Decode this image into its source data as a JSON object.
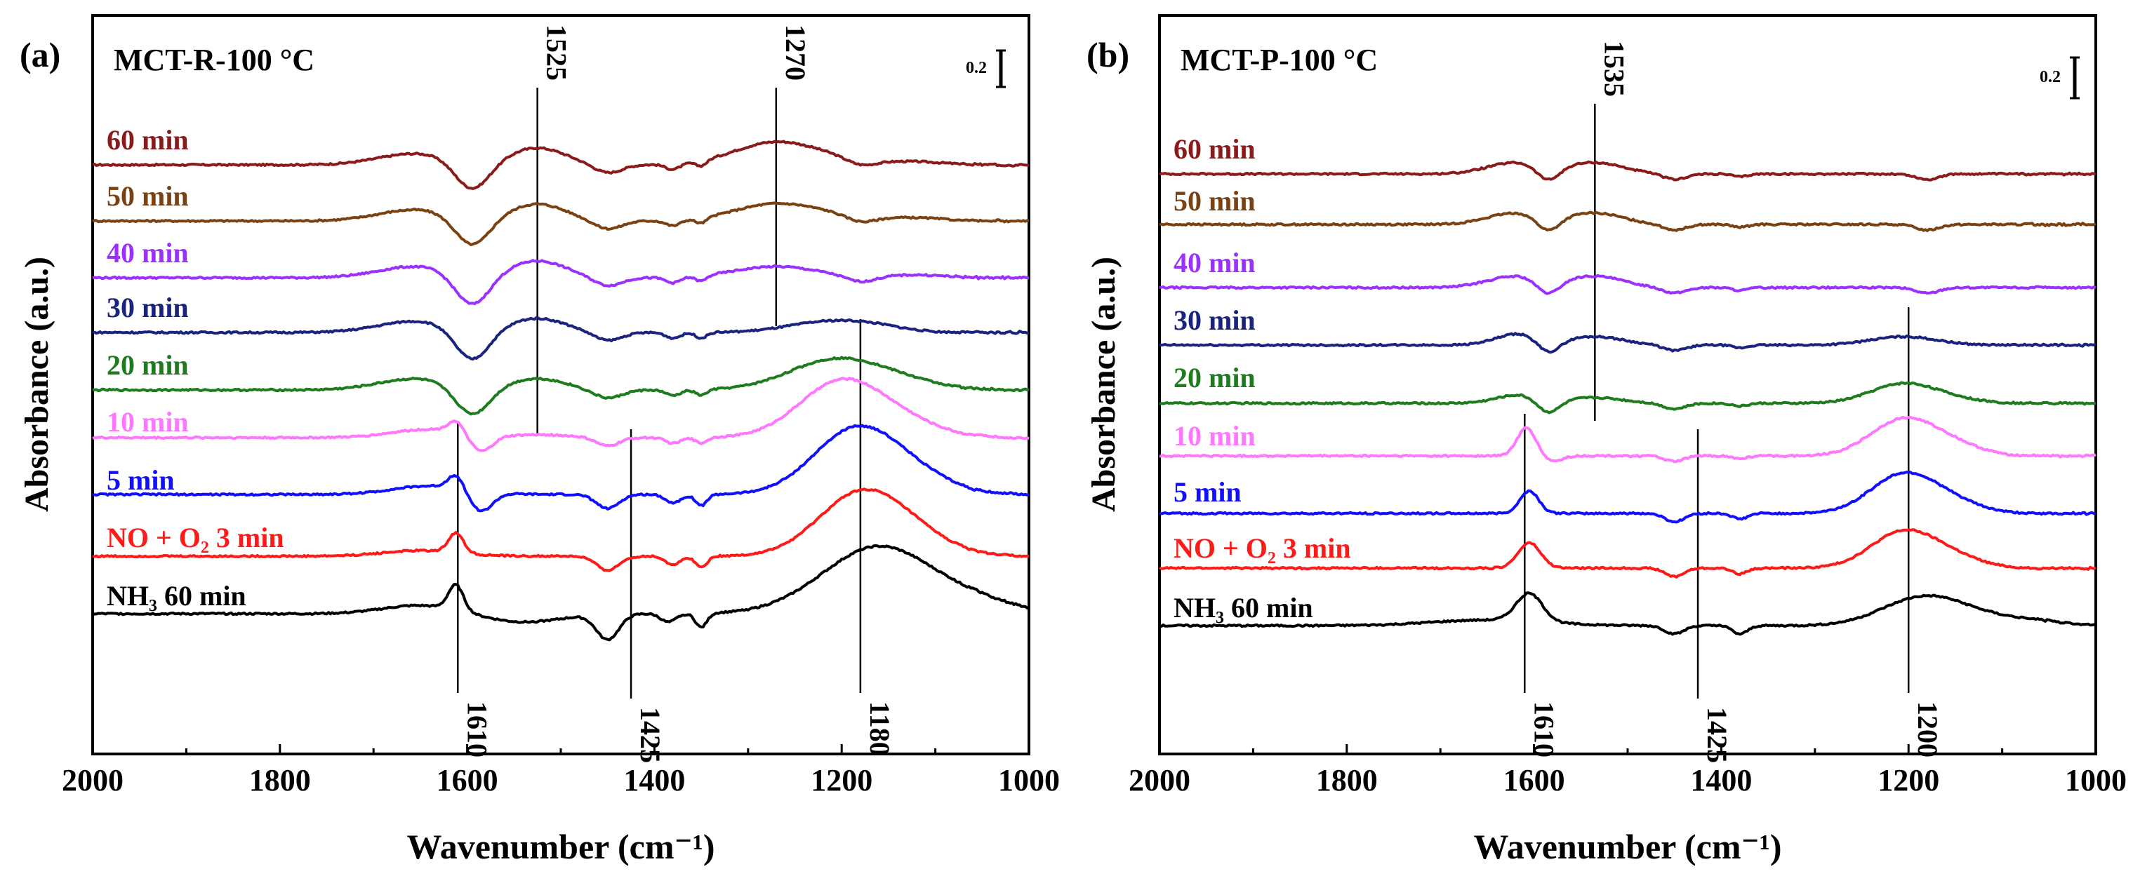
{
  "chart_data": [
    {
      "panel": "(a)",
      "type": "line",
      "title": "MCT-R-100 °C",
      "xlabel": "Wavenumber (cm⁻¹)",
      "ylabel": "Absorbance (a.u.)",
      "xlim": [
        2000,
        1000
      ],
      "x_ticks": [
        "2000",
        "1800",
        "1600",
        "1400",
        "1200",
        "1000"
      ],
      "scale_bar_label": "0.2",
      "series": [
        {
          "name": "60 min",
          "color": "#8b1a1a",
          "baseline": 0.0,
          "features": [
            [
              1655,
              0.04,
              40
            ],
            [
              1595,
              -0.1,
              18
            ],
            [
              1525,
              0.06,
              30
            ],
            [
              1450,
              -0.03,
              15
            ],
            [
              1380,
              -0.02,
              8
            ],
            [
              1350,
              -0.02,
              6
            ],
            [
              1270,
              0.08,
              45
            ],
            [
              1200,
              0.01,
              40
            ],
            [
              1180,
              -0.02,
              15
            ],
            [
              1120,
              0.01,
              30
            ]
          ]
        },
        {
          "name": "50 min",
          "color": "#7a4212",
          "baseline": 0.0,
          "features": [
            [
              1655,
              0.04,
              40
            ],
            [
              1595,
              -0.1,
              18
            ],
            [
              1525,
              0.06,
              30
            ],
            [
              1450,
              -0.03,
              15
            ],
            [
              1380,
              -0.02,
              8
            ],
            [
              1350,
              -0.02,
              6
            ],
            [
              1270,
              0.06,
              45
            ],
            [
              1200,
              0.01,
              40
            ],
            [
              1180,
              -0.02,
              15
            ],
            [
              1120,
              0.01,
              30
            ]
          ]
        },
        {
          "name": "40 min",
          "color": "#9b30ff",
          "baseline": 0.0,
          "features": [
            [
              1655,
              0.04,
              40
            ],
            [
              1595,
              -0.11,
              18
            ],
            [
              1525,
              0.06,
              30
            ],
            [
              1450,
              -0.03,
              15
            ],
            [
              1380,
              -0.02,
              8
            ],
            [
              1350,
              -0.02,
              6
            ],
            [
              1270,
              0.04,
              45
            ],
            [
              1180,
              -0.02,
              15
            ],
            [
              1120,
              0.01,
              30
            ]
          ]
        },
        {
          "name": "30 min",
          "color": "#1a237e",
          "baseline": 0.0,
          "features": [
            [
              1655,
              0.04,
              40
            ],
            [
              1595,
              -0.11,
              18
            ],
            [
              1525,
              0.05,
              30
            ],
            [
              1450,
              -0.03,
              15
            ],
            [
              1380,
              -0.02,
              8
            ],
            [
              1350,
              -0.02,
              6
            ],
            [
              1210,
              0.04,
              45
            ],
            [
              1160,
              0.01,
              30
            ]
          ]
        },
        {
          "name": "20 min",
          "color": "#1e7b1e",
          "baseline": 0.0,
          "features": [
            [
              1655,
              0.04,
              40
            ],
            [
              1595,
              -0.1,
              18
            ],
            [
              1525,
              0.04,
              30
            ],
            [
              1450,
              -0.03,
              15
            ],
            [
              1380,
              -0.02,
              8
            ],
            [
              1350,
              -0.02,
              6
            ],
            [
              1205,
              0.11,
              50
            ],
            [
              1130,
              0.02,
              40
            ]
          ]
        },
        {
          "name": "10 min",
          "color": "#ff77ff",
          "baseline": 0.0,
          "features": [
            [
              1640,
              0.03,
              40
            ],
            [
              1612,
              0.04,
              8
            ],
            [
              1585,
              -0.06,
              12
            ],
            [
              1520,
              0.01,
              30
            ],
            [
              1450,
              -0.03,
              12
            ],
            [
              1380,
              -0.02,
              8
            ],
            [
              1350,
              -0.02,
              6
            ],
            [
              1200,
              0.2,
              45
            ],
            [
              1130,
              0.04,
              40
            ]
          ]
        },
        {
          "name": "5 min",
          "color": "#1010ff",
          "baseline": 0.0,
          "features": [
            [
              1640,
              0.03,
              40
            ],
            [
              1612,
              0.05,
              8
            ],
            [
              1585,
              -0.07,
              12
            ],
            [
              1450,
              -0.05,
              12
            ],
            [
              1380,
              -0.03,
              8
            ],
            [
              1350,
              -0.04,
              6
            ],
            [
              1185,
              0.23,
              45
            ],
            [
              1120,
              0.05,
              40
            ]
          ]
        },
        {
          "name": "NO + O₂ 3 min",
          "color": "#ff1a1a",
          "baseline": 0.0,
          "features": [
            [
              1650,
              0.02,
              40
            ],
            [
              1612,
              0.07,
              8
            ],
            [
              1450,
              -0.05,
              12
            ],
            [
              1380,
              -0.03,
              8
            ],
            [
              1350,
              -0.04,
              6
            ],
            [
              1180,
              0.22,
              45
            ],
            [
              1120,
              0.05,
              40
            ]
          ]
        },
        {
          "name": "NH₃ 60 min",
          "color": "#000000",
          "baseline": 0.0,
          "features": [
            [
              1650,
              0.03,
              40
            ],
            [
              1612,
              0.09,
              8
            ],
            [
              1540,
              -0.03,
              40
            ],
            [
              1450,
              -0.09,
              12
            ],
            [
              1385,
              -0.03,
              8
            ],
            [
              1350,
              -0.05,
              6
            ],
            [
              1160,
              0.24,
              60
            ],
            [
              1050,
              0.03,
              40
            ]
          ]
        }
      ],
      "markers": [
        {
          "x": 1525,
          "label": "1525"
        },
        {
          "x": 1270,
          "label": "1270"
        },
        {
          "x": 1610,
          "label": "1610"
        },
        {
          "x": 1425,
          "label": "1425"
        },
        {
          "x": 1180,
          "label": "1180"
        }
      ]
    },
    {
      "panel": "(b)",
      "type": "line",
      "title": "MCT-P-100 °C",
      "xlabel": "Wavenumber (cm⁻¹)",
      "ylabel": "Absorbance (a.u.)",
      "xlim": [
        2000,
        1000
      ],
      "x_ticks": [
        "2000",
        "1800",
        "1600",
        "1400",
        "1200",
        "1000"
      ],
      "scale_bar_label": "0.2",
      "series": [
        {
          "name": "60 min",
          "color": "#8b1a1a",
          "baseline": 0.0,
          "features": [
            [
              1620,
              0.04,
              30
            ],
            [
              1585,
              -0.05,
              12
            ],
            [
              1535,
              0.04,
              30
            ],
            [
              1450,
              -0.02,
              12
            ],
            [
              1380,
              -0.01,
              8
            ],
            [
              1180,
              -0.02,
              12
            ]
          ]
        },
        {
          "name": "50 min",
          "color": "#7a4212",
          "baseline": 0.0,
          "features": [
            [
              1620,
              0.04,
              30
            ],
            [
              1585,
              -0.05,
              12
            ],
            [
              1535,
              0.04,
              30
            ],
            [
              1450,
              -0.02,
              12
            ],
            [
              1380,
              -0.01,
              8
            ],
            [
              1180,
              -0.02,
              12
            ]
          ]
        },
        {
          "name": "40 min",
          "color": "#9b30ff",
          "baseline": 0.0,
          "features": [
            [
              1620,
              0.04,
              30
            ],
            [
              1585,
              -0.05,
              12
            ],
            [
              1535,
              0.04,
              30
            ],
            [
              1450,
              -0.02,
              12
            ],
            [
              1380,
              -0.01,
              8
            ],
            [
              1180,
              -0.02,
              12
            ]
          ]
        },
        {
          "name": "30 min",
          "color": "#1a237e",
          "baseline": 0.0,
          "features": [
            [
              1615,
              0.04,
              25
            ],
            [
              1585,
              -0.05,
              12
            ],
            [
              1535,
              0.03,
              30
            ],
            [
              1450,
              -0.02,
              12
            ],
            [
              1380,
              -0.01,
              8
            ],
            [
              1205,
              0.03,
              35
            ]
          ]
        },
        {
          "name": "20 min",
          "color": "#1e7b1e",
          "baseline": 0.0,
          "features": [
            [
              1615,
              0.03,
              25
            ],
            [
              1585,
              -0.05,
              12
            ],
            [
              1535,
              0.02,
              30
            ],
            [
              1450,
              -0.02,
              12
            ],
            [
              1380,
              -0.01,
              8
            ],
            [
              1205,
              0.07,
              35
            ],
            [
              1150,
              0.01,
              30
            ]
          ]
        },
        {
          "name": "10 min",
          "color": "#ff77ff",
          "baseline": 0.0,
          "features": [
            [
              1608,
              0.1,
              10
            ],
            [
              1580,
              -0.02,
              10
            ],
            [
              1450,
              -0.02,
              10
            ],
            [
              1380,
              -0.01,
              8
            ],
            [
              1205,
              0.13,
              35
            ],
            [
              1150,
              0.03,
              30
            ]
          ]
        },
        {
          "name": "5 min",
          "color": "#1010ff",
          "baseline": 0.0,
          "features": [
            [
              1605,
              0.08,
              10
            ],
            [
              1450,
              -0.03,
              10
            ],
            [
              1380,
              -0.02,
              8
            ],
            [
              1205,
              0.14,
              35
            ],
            [
              1150,
              0.03,
              30
            ]
          ]
        },
        {
          "name": "NO + O₂ 3 min",
          "color": "#ff1a1a",
          "baseline": 0.0,
          "features": [
            [
              1605,
              0.09,
              12
            ],
            [
              1450,
              -0.03,
              10
            ],
            [
              1380,
              -0.02,
              8
            ],
            [
              1205,
              0.13,
              35
            ],
            [
              1150,
              0.03,
              30
            ]
          ]
        },
        {
          "name": "NH₃ 60 min",
          "color": "#000000",
          "baseline": 0.0,
          "features": [
            [
              1650,
              0.02,
              60
            ],
            [
              1605,
              0.1,
              14
            ],
            [
              1450,
              -0.03,
              10
            ],
            [
              1380,
              -0.03,
              8
            ],
            [
              1200,
              0.06,
              40
            ],
            [
              1160,
              0.06,
              40
            ],
            [
              1080,
              0.02,
              40
            ]
          ]
        }
      ],
      "markers": [
        {
          "x": 1535,
          "label": "1535"
        },
        {
          "x": 1610,
          "label": "1610"
        },
        {
          "x": 1425,
          "label": "1425"
        },
        {
          "x": 1200,
          "label": "1200"
        }
      ]
    }
  ]
}
